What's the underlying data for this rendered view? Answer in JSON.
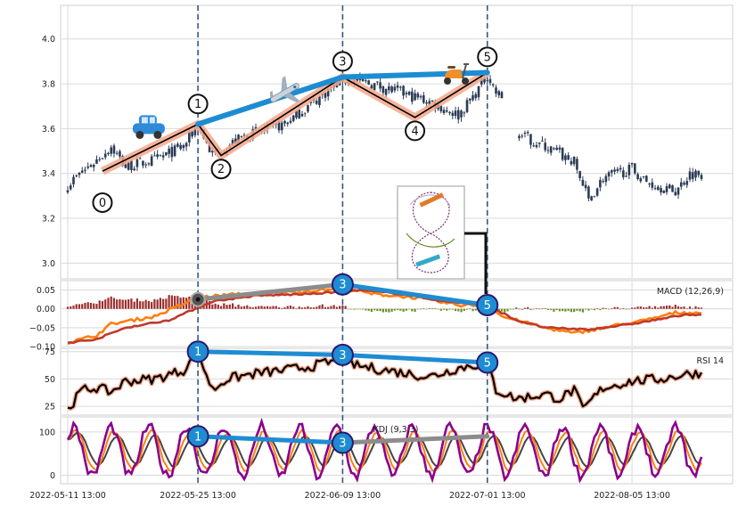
{
  "chart_data": {
    "type": "candlestick-with-indicators",
    "x_axis": {
      "tick_labels": [
        "2022-05-11 13:00",
        "2022-05-25 13:00",
        "2022-06-09 13:00",
        "2022-07-01 13:00",
        "2022-08-05 13:00"
      ],
      "tick_positions_index": [
        0,
        45,
        95,
        145,
        195
      ],
      "num_bars": 220
    },
    "price_panel": {
      "ylim": [
        2.93,
        4.15
      ],
      "yticks": [
        "3.0",
        "3.2",
        "3.4",
        "3.6",
        "3.8",
        "4.0"
      ],
      "ytick_values": [
        3.0,
        3.2,
        3.4,
        3.6,
        3.8,
        4.0
      ],
      "anchors": [
        [
          0,
          3.35
        ],
        [
          10,
          3.46
        ],
        [
          15,
          3.52
        ],
        [
          20,
          3.43
        ],
        [
          30,
          3.46
        ],
        [
          40,
          3.52
        ],
        [
          45,
          3.62
        ],
        [
          50,
          3.48
        ],
        [
          60,
          3.56
        ],
        [
          75,
          3.62
        ],
        [
          85,
          3.72
        ],
        [
          95,
          3.82
        ],
        [
          105,
          3.8
        ],
        [
          115,
          3.76
        ],
        [
          125,
          3.72
        ],
        [
          135,
          3.66
        ],
        [
          140,
          3.74
        ],
        [
          145,
          3.84
        ],
        [
          148,
          3.76
        ],
        [
          150,
          3.74
        ],
        [
          152,
          null
        ],
        [
          155,
          3.58
        ],
        [
          165,
          3.52
        ],
        [
          175,
          3.45
        ],
        [
          180,
          3.28
        ],
        [
          185,
          3.38
        ],
        [
          195,
          3.42
        ],
        [
          200,
          3.36
        ],
        [
          210,
          3.32
        ],
        [
          215,
          3.4
        ]
      ],
      "wave_points": [
        {
          "label": "0",
          "x": 12,
          "y": 3.41,
          "label_y": 3.27
        },
        {
          "label": "1",
          "x": 45,
          "y": 3.62,
          "label_y": 3.71
        },
        {
          "label": "2",
          "x": 53,
          "y": 3.48,
          "label_y": 3.42
        },
        {
          "label": "3",
          "x": 95,
          "y": 3.83,
          "label_y": 3.9
        },
        {
          "label": "4",
          "x": 120,
          "y": 3.65,
          "label_y": 3.59
        },
        {
          "label": "5",
          "x": 145,
          "y": 3.85,
          "label_y": 3.92
        }
      ],
      "trend_lines": [
        {
          "from": [
            45,
            3.62
          ],
          "to": [
            95,
            3.83
          ],
          "color": "#1e8cd2"
        },
        {
          "from": [
            95,
            3.83
          ],
          "to": [
            145,
            3.85
          ],
          "color": "#1e8cd2"
        }
      ],
      "vertical_lines_index": [
        45,
        95,
        145
      ],
      "icons": [
        {
          "name": "car-icon",
          "x": 28,
          "y": 3.6
        },
        {
          "name": "airplane-icon",
          "x": 75,
          "y": 3.76
        },
        {
          "name": "scooter-icon",
          "x": 134,
          "y": 3.84
        }
      ]
    },
    "macd_panel": {
      "label": "MACD (12,26,9)",
      "ylim": [
        -0.1,
        0.075
      ],
      "yticks": [
        "0.05",
        "0.00",
        "−0.05",
        "−0.10"
      ],
      "ytick_values": [
        0.05,
        0.0,
        -0.05,
        -0.1
      ],
      "macd_anchors": [
        [
          0,
          -0.09
        ],
        [
          10,
          -0.07
        ],
        [
          15,
          -0.04
        ],
        [
          30,
          -0.02
        ],
        [
          45,
          0.03
        ],
        [
          60,
          0.04
        ],
        [
          80,
          0.045
        ],
        [
          95,
          0.055
        ],
        [
          105,
          0.04
        ],
        [
          120,
          0.03
        ],
        [
          135,
          0.01
        ],
        [
          145,
          0.01
        ],
        [
          150,
          -0.02
        ],
        [
          165,
          -0.05
        ],
        [
          175,
          -0.065
        ],
        [
          185,
          -0.05
        ],
        [
          200,
          -0.03
        ],
        [
          210,
          -0.01
        ],
        [
          215,
          -0.01
        ]
      ],
      "signal_anchors": [
        [
          0,
          -0.09
        ],
        [
          10,
          -0.08
        ],
        [
          20,
          -0.05
        ],
        [
          35,
          -0.03
        ],
        [
          50,
          0.02
        ],
        [
          65,
          0.035
        ],
        [
          85,
          0.04
        ],
        [
          100,
          0.05
        ],
        [
          115,
          0.04
        ],
        [
          130,
          0.02
        ],
        [
          145,
          0.01
        ],
        [
          155,
          -0.03
        ],
        [
          165,
          -0.05
        ],
        [
          180,
          -0.055
        ],
        [
          195,
          -0.04
        ],
        [
          210,
          -0.02
        ],
        [
          215,
          -0.015
        ]
      ],
      "markers": [
        {
          "label": "",
          "x": 45,
          "y": 0.025,
          "kind": "gray"
        },
        {
          "label": "3",
          "x": 95,
          "y": 0.065,
          "kind": "blue"
        },
        {
          "label": "5",
          "x": 145,
          "y": 0.01,
          "kind": "blue"
        }
      ],
      "lines": [
        {
          "from": [
            45,
            0.025
          ],
          "to": [
            95,
            0.065
          ],
          "color": "#8c8c8c"
        },
        {
          "from": [
            95,
            0.065
          ],
          "to": [
            145,
            0.01
          ],
          "color": "#1e8cd2"
        }
      ]
    },
    "rsi_panel": {
      "label": "RSI 14",
      "ylim": [
        17,
        78
      ],
      "yticks": [
        "25",
        "50",
        "75"
      ],
      "ytick_values": [
        25,
        50,
        75
      ],
      "anchors": [
        [
          0,
          22
        ],
        [
          5,
          40
        ],
        [
          10,
          42
        ],
        [
          15,
          38
        ],
        [
          20,
          48
        ],
        [
          30,
          50
        ],
        [
          40,
          58
        ],
        [
          45,
          74
        ],
        [
          50,
          40
        ],
        [
          55,
          50
        ],
        [
          65,
          55
        ],
        [
          75,
          58
        ],
        [
          85,
          62
        ],
        [
          95,
          68
        ],
        [
          100,
          62
        ],
        [
          110,
          58
        ],
        [
          125,
          52
        ],
        [
          135,
          60
        ],
        [
          145,
          65
        ],
        [
          148,
          40
        ],
        [
          155,
          32
        ],
        [
          165,
          36
        ],
        [
          170,
          32
        ],
        [
          175,
          40
        ],
        [
          178,
          22
        ],
        [
          185,
          42
        ],
        [
          195,
          48
        ],
        [
          205,
          50
        ],
        [
          215,
          55
        ]
      ],
      "markers": [
        {
          "label": "1",
          "x": 45,
          "y": 75,
          "kind": "blue"
        },
        {
          "label": "3",
          "x": 95,
          "y": 72,
          "kind": "blue"
        },
        {
          "label": "5",
          "x": 145,
          "y": 65,
          "kind": "blue"
        }
      ],
      "lines": [
        {
          "from": [
            45,
            75
          ],
          "to": [
            95,
            72
          ],
          "color": "#1e8cd2"
        },
        {
          "from": [
            95,
            72
          ],
          "to": [
            145,
            65
          ],
          "color": "#1e8cd2"
        }
      ]
    },
    "kdj_panel": {
      "label": "KDJ (9,3,3)",
      "ylim": [
        -20,
        135
      ],
      "yticks": [
        "100",
        "0"
      ],
      "ytick_values": [
        100,
        0
      ],
      "markers": [
        {
          "label": "1",
          "x": 45,
          "y": 90,
          "kind": "blue"
        },
        {
          "label": "3",
          "x": 95,
          "y": 75,
          "kind": "blue"
        },
        {
          "label": "",
          "x": 145,
          "y": 90,
          "kind": "none"
        }
      ],
      "lines": [
        {
          "from": [
            45,
            90
          ],
          "to": [
            95,
            75
          ],
          "color": "#1e8cd2"
        },
        {
          "from": [
            95,
            75
          ],
          "to": [
            145,
            90
          ],
          "color": "#8c8c8c"
        }
      ]
    },
    "colors": {
      "candle": "#2b3b55",
      "wave_band": "#f4a78a",
      "wave_line": "#000000",
      "trend_blue": "#1e8cd2",
      "macd_line": "#ff7f0e",
      "signal_line": "#c0392b",
      "hist_pos": "#9b2d2d",
      "hist_neg": "#6b8e23",
      "rsi_line": "#000000",
      "rsi_band": "#f4a78a",
      "k_line": "#ff7f0e",
      "d_line": "#444444",
      "j_line": "#8b008b",
      "grid": "#d9d9d9",
      "vline": "#3b5578",
      "gray": "#8c8c8c"
    }
  }
}
